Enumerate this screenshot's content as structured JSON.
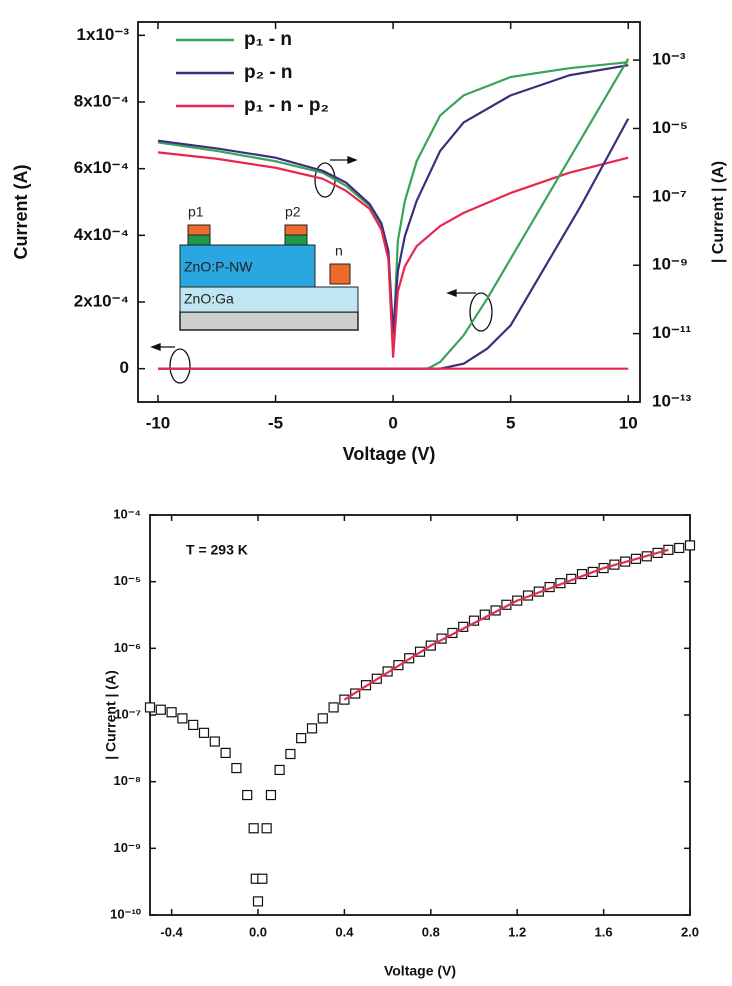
{
  "chart_data": [
    {
      "type": "line",
      "xlabel": "Voltage (V)",
      "ylabel": "Current (A)",
      "y2label": "| Current | (A)",
      "xlim": [
        -10.85,
        10.5
      ],
      "xticks": [
        -10,
        -5,
        0,
        5,
        10
      ],
      "ylim": [
        -0.0001,
        0.00104
      ],
      "yticks": [
        0,
        {
          "value": 0.0002,
          "label": "2x10⁻⁴"
        },
        {
          "value": 0.0004,
          "label": "4x10⁻⁴"
        },
        {
          "value": 0.0006,
          "label": "6x10⁻⁴"
        },
        {
          "value": 0.0008,
          "label": "8x10⁻⁴"
        },
        {
          "value": 0.001,
          "label": "1x10⁻³"
        }
      ],
      "y2lim": [
        1e-13,
        0.013
      ],
      "y2_scale": "log",
      "y2ticks": [
        {
          "value": 1e-13,
          "label": "10⁻¹³"
        },
        {
          "value": 1e-11,
          "label": "10⁻¹¹"
        },
        {
          "value": 1e-09,
          "label": "10⁻⁹"
        },
        {
          "value": 1e-07,
          "label": "10⁻⁷"
        },
        {
          "value": 1e-05,
          "label": "10⁻⁵"
        },
        {
          "value": 0.001,
          "label": "10⁻³"
        }
      ],
      "legend": "upper left",
      "inset": {
        "labels": [
          "p1",
          "p2",
          "n",
          "ZnO:P-NW",
          "ZnO:Ga"
        ]
      },
      "series": [
        {
          "name": "p₁ - n",
          "color": "#3aa35a",
          "axis": "y2",
          "x": [
            -10,
            -7.5,
            -5,
            -3,
            -2,
            -1,
            -0.5,
            -0.2,
            0,
            0.2,
            0.5,
            1,
            2,
            3,
            5,
            7.5,
            10
          ],
          "values": [
            3.9e-06,
            2.2e-06,
            1.1e-06,
            5.1e-07,
            2.1e-07,
            5.5e-08,
            1.4e-08,
            1.8e-09,
            4.2e-12,
            5.1e-09,
            7.6e-08,
            1.1e-06,
            2.4e-05,
            9.3e-05,
            0.00032,
            0.00058,
            0.00087
          ]
        },
        {
          "name": "p₂ - n",
          "color": "#3b2e7e",
          "axis": "y2",
          "x": [
            -10,
            -7.5,
            -5,
            -3,
            -2,
            -1,
            -0.5,
            -0.2,
            0,
            0.2,
            0.5,
            1,
            2,
            3,
            5,
            7.5,
            10
          ],
          "values": [
            4.4e-06,
            2.6e-06,
            1.4e-06,
            5.8e-07,
            2.6e-07,
            6.2e-08,
            1.7e-08,
            2.6e-09,
            1.1e-11,
            6.6e-10,
            7.1e-09,
            7.6e-08,
            2.2e-06,
            1.5e-05,
            9.3e-05,
            0.00036,
            0.00071
          ]
        },
        {
          "name": "p₁ - n - p₂",
          "color": "#e8264f",
          "axis": "y2",
          "x": [
            -10,
            -7.5,
            -5,
            -3,
            -2,
            -1,
            -0.5,
            -0.2,
            0,
            0.2,
            0.5,
            1,
            2,
            3,
            5,
            7.5,
            10
          ],
          "values": [
            2e-06,
            1.3e-06,
            7.1e-07,
            3.4e-07,
            1.5e-07,
            4.5e-08,
            1.1e-08,
            1.5e-09,
            2.1e-12,
            1.7e-10,
            9.3e-10,
            3.6e-09,
            1.4e-08,
            3.4e-08,
            1.3e-07,
            5.1e-07,
            1.4e-06
          ]
        },
        {
          "color": "#3aa35a",
          "x": [
            -10,
            0,
            1,
            1.5,
            2,
            3,
            4,
            5,
            6,
            7,
            8,
            9,
            10
          ],
          "values": [
            0,
            0,
            0,
            1e-06,
            2e-05,
            0.0001,
            0.00021,
            0.00033,
            0.00045,
            0.00057,
            0.00069,
            0.00081,
            0.00093
          ]
        },
        {
          "color": "#3b2e7e",
          "x": [
            -10,
            0,
            1,
            1.5,
            2,
            3,
            4,
            5,
            6,
            7,
            8,
            9,
            10
          ],
          "values": [
            0,
            0,
            0,
            0,
            0,
            1.5e-05,
            6e-05,
            0.00013,
            0.00025,
            0.00037,
            0.00049,
            0.00062,
            0.00075
          ]
        },
        {
          "color": "#e8264f",
          "x": [
            -10,
            10
          ],
          "values": [
            0,
            0
          ]
        }
      ]
    },
    {
      "type": "scatter",
      "xlabel": "Voltage (V)",
      "ylabel": "| Current | (A)",
      "xlim": [
        -0.5,
        2.0
      ],
      "xticks": [
        -0.4,
        {
          "value": 0,
          "label": "0.0"
        },
        0.4,
        0.8,
        1.2,
        1.6,
        {
          "value": 2,
          "label": "2.0"
        }
      ],
      "ylim": [
        1e-10,
        0.0001
      ],
      "y_scale": "log",
      "yticks": [
        {
          "value": 1e-10,
          "label": "10⁻¹⁰"
        },
        {
          "value": 1e-09,
          "label": "10⁻⁹"
        },
        {
          "value": 1e-08,
          "label": "10⁻⁸"
        },
        {
          "value": 1e-07,
          "label": "10⁻⁷"
        },
        {
          "value": 1e-06,
          "label": "10⁻⁶"
        },
        {
          "value": 1e-05,
          "label": "10⁻⁵"
        },
        {
          "value": 0.0001,
          "label": "10⁻⁴"
        }
      ],
      "annotations": [
        "T = 293 K"
      ],
      "series": [
        {
          "color": "#111111",
          "x": [
            -0.5,
            -0.45,
            -0.4,
            -0.35,
            -0.3,
            -0.25,
            -0.2,
            -0.15,
            -0.1,
            -0.05,
            -0.02,
            -0.01,
            0,
            0.02,
            0.04,
            0.06,
            0.1,
            0.15,
            0.2,
            0.25,
            0.3,
            0.35,
            0.4,
            0.45,
            0.5,
            0.55,
            0.6,
            0.65,
            0.7,
            0.75,
            0.8,
            0.85,
            0.9,
            0.95,
            1.0,
            1.05,
            1.1,
            1.15,
            1.2,
            1.25,
            1.3,
            1.35,
            1.4,
            1.45,
            1.5,
            1.55,
            1.6,
            1.65,
            1.7,
            1.75,
            1.8,
            1.85,
            1.9,
            1.95,
            2.0
          ],
          "values": [
            1.3e-07,
            1.2e-07,
            1.1e-07,
            8.9e-08,
            7.1e-08,
            5.4e-08,
            4e-08,
            2.7e-08,
            1.6e-08,
            6.3e-09,
            2e-09,
            3.5e-10,
            1.6e-10,
            3.5e-10,
            2e-09,
            6.3e-09,
            1.5e-08,
            2.6e-08,
            4.5e-08,
            6.3e-08,
            8.9e-08,
            1.3e-07,
            1.7e-07,
            2.1e-07,
            2.8e-07,
            3.5e-07,
            4.5e-07,
            5.6e-07,
            7.1e-07,
            8.9e-07,
            1.1e-06,
            1.4e-06,
            1.7e-06,
            2.1e-06,
            2.6e-06,
            3.2e-06,
            3.7e-06,
            4.5e-06,
            5.2e-06,
            6.2e-06,
            7.1e-06,
            8.3e-06,
            9.5e-06,
            1.1e-05,
            1.3e-05,
            1.4e-05,
            1.6e-05,
            1.8e-05,
            2e-05,
            2.2e-05,
            2.4e-05,
            2.7e-05,
            3e-05,
            3.2e-05,
            3.5e-05
          ]
        },
        {
          "type": "line",
          "color": "#e03050",
          "x": [
            0.4,
            0.8,
            1.2,
            1.6,
            1.9
          ],
          "values": [
            1.7e-07,
            1.1e-06,
            5.2e-06,
            1.6e-05,
            3e-05
          ]
        }
      ]
    }
  ]
}
